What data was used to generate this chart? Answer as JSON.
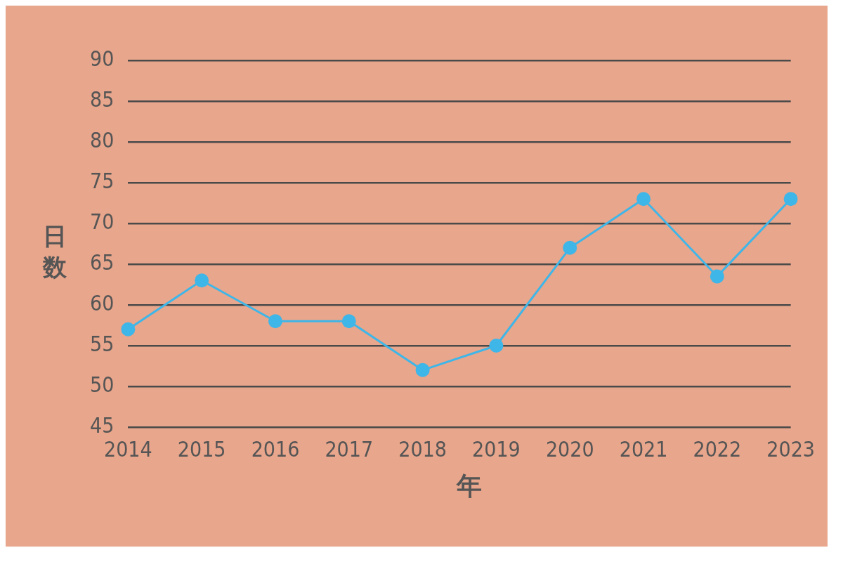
{
  "chart_data": {
    "type": "line",
    "xlabel": "年",
    "ylabel": "日数",
    "categories": [
      "2014",
      "2015",
      "2016",
      "2017",
      "2018",
      "2019",
      "2020",
      "2021",
      "2022",
      "2023"
    ],
    "series": [
      {
        "color": "#3fb6e8",
        "values": [
          57,
          63,
          58,
          58,
          52,
          55,
          67,
          73,
          63.5,
          73
        ]
      }
    ],
    "ylim": [
      45,
      90
    ],
    "yticks": [
      45,
      50,
      55,
      60,
      65,
      70,
      75,
      80,
      85,
      90
    ],
    "grid": "y",
    "legend": false,
    "marker": "circle",
    "line_style": "solid"
  }
}
